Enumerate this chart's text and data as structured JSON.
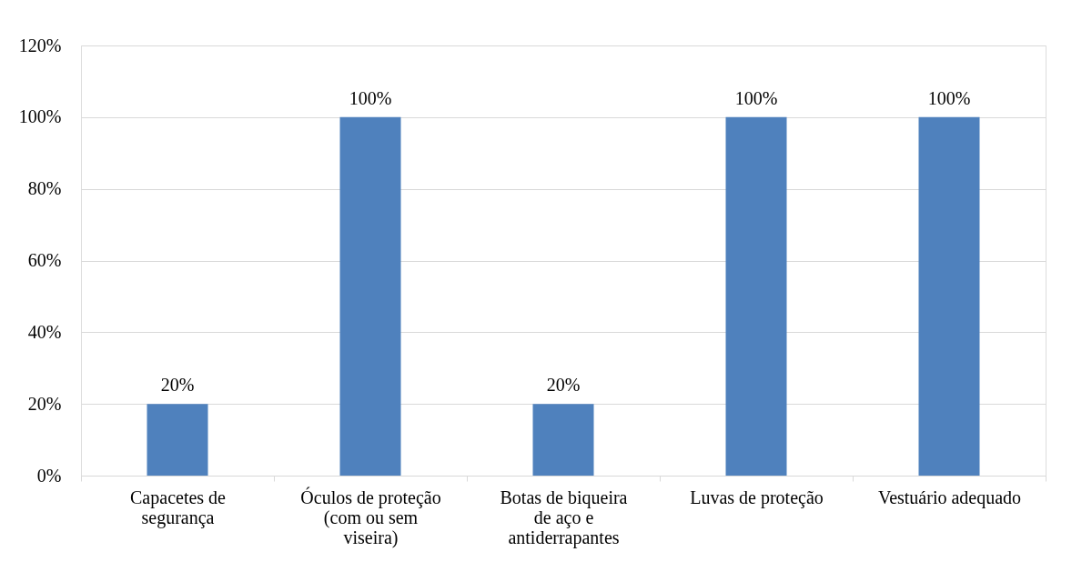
{
  "chart_data": {
    "type": "bar",
    "categories": [
      "Capacetes de segurança",
      "Óculos de proteção (com ou sem viseira)",
      "Botas de biqueira de aço e antiderrapantes",
      "Luvas de proteção",
      "Vestuário adequado"
    ],
    "values": [
      20,
      100,
      20,
      100,
      100
    ],
    "color": "#4f81bd",
    "value_labels": [
      "20%",
      "100%",
      "20%",
      "100%",
      "100%"
    ],
    "ylim": [
      0,
      120
    ],
    "yticks": [
      {
        "value": 0,
        "label": "0%"
      },
      {
        "value": 20,
        "label": "20%"
      },
      {
        "value": 40,
        "label": "40%"
      },
      {
        "value": 60,
        "label": "60%"
      },
      {
        "value": 80,
        "label": "80%"
      },
      {
        "value": 100,
        "label": "100%"
      },
      {
        "value": 120,
        "label": "120%"
      }
    ],
    "grid": "y"
  }
}
